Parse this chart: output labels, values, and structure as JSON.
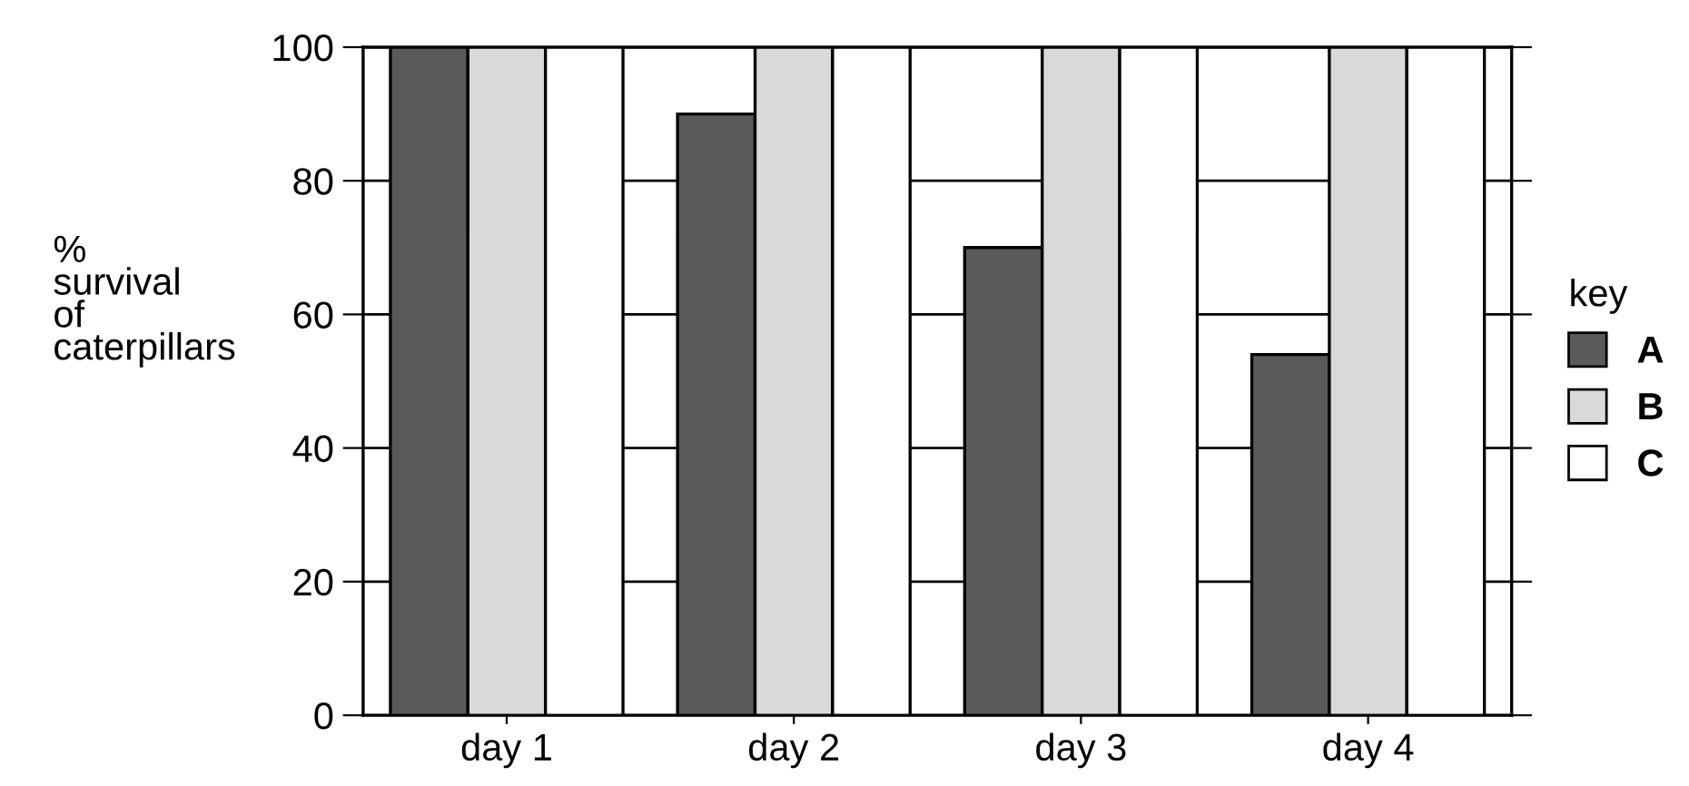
{
  "chart_data": {
    "type": "bar",
    "ylabel": "%\nsurvival\nof\ncaterpillars",
    "legend_title": "key",
    "categories": [
      "day 1",
      "day 2",
      "day 3",
      "day 4"
    ],
    "series": [
      {
        "name": "A",
        "color": "#5a5a5a",
        "values": [
          100,
          90,
          70,
          54
        ]
      },
      {
        "name": "B",
        "color": "#d9d9d9",
        "values": [
          100,
          100,
          100,
          100
        ]
      },
      {
        "name": "C",
        "color": "#ffffff",
        "values": [
          100,
          100,
          100,
          100
        ]
      }
    ],
    "ylim": [
      0,
      100
    ],
    "yticks": [
      0,
      20,
      40,
      60,
      80,
      100
    ],
    "grid": "y",
    "legend": "right"
  }
}
